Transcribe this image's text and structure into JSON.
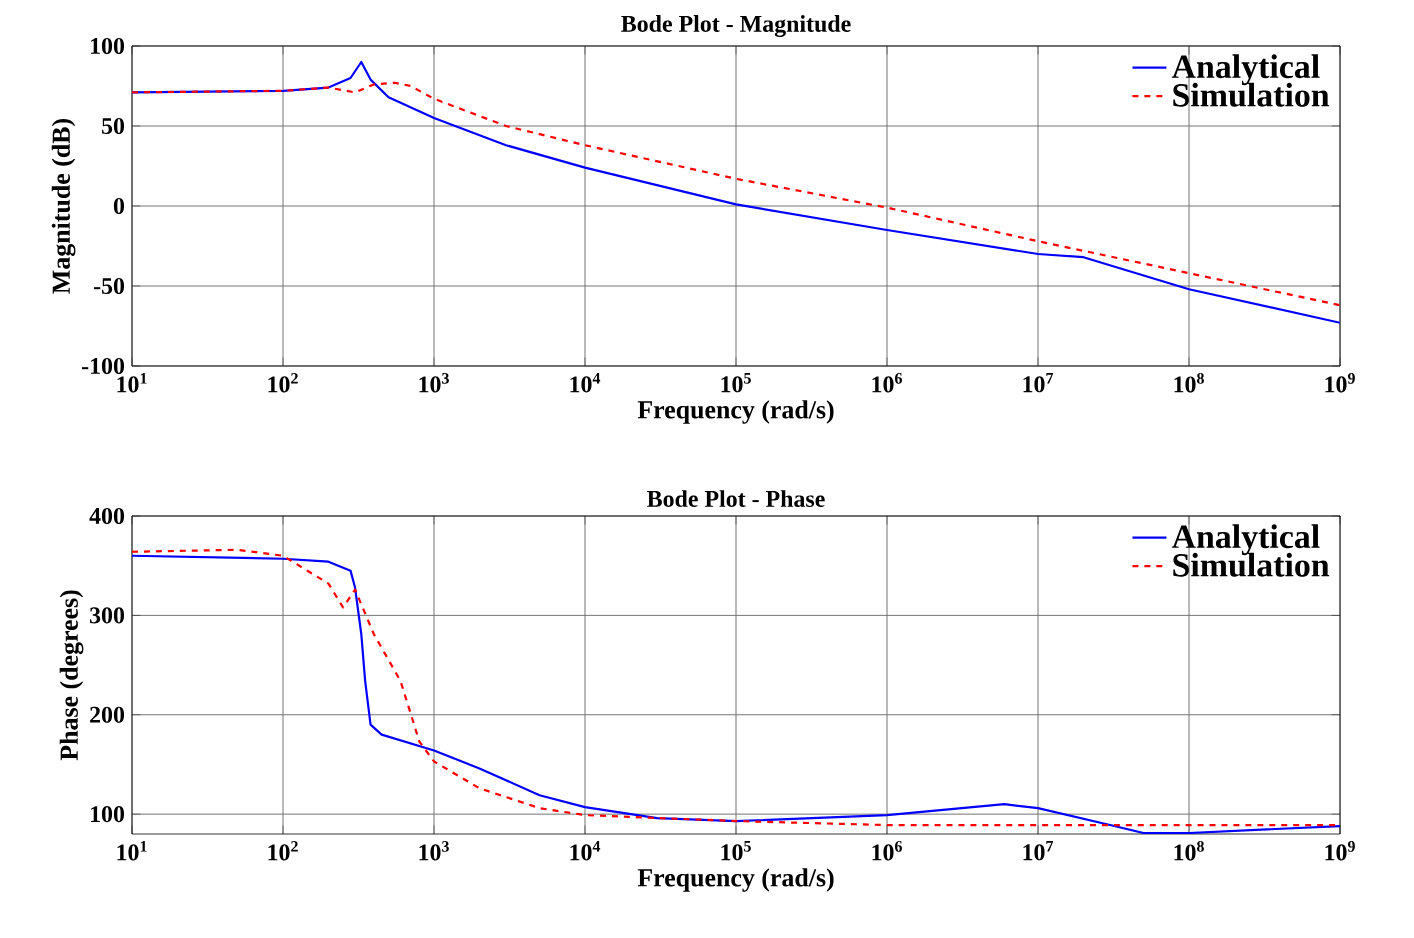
{
  "chart_data": [
    {
      "type": "line",
      "title": "Bode Plot - Magnitude",
      "xlabel": "Frequency (rad/s)",
      "ylabel": "Magnitude (dB)",
      "log": "x",
      "grid": true,
      "legend": "top right",
      "xlim": [
        10,
        1000000000
      ],
      "ylim": [
        -100,
        100
      ],
      "xticks": [
        {
          "value": 10,
          "label": "10$^{1}$"
        },
        {
          "value": 100,
          "label": "10$^{2}$"
        },
        {
          "value": 1000,
          "label": "10$^{3}$"
        },
        {
          "value": 10000,
          "label": "10$^{4}$"
        },
        {
          "value": 100000,
          "label": "10$^{5}$"
        },
        {
          "value": 1000000,
          "label": "10$^{6}$"
        },
        {
          "value": 10000000,
          "label": "10$^{7}$"
        },
        {
          "value": 100000000,
          "label": "10$^{8}$"
        },
        {
          "value": 1000000000,
          "label": "10$^{9}$"
        }
      ],
      "yticks": [
        -100,
        -50,
        0,
        50,
        100
      ],
      "series": [
        {
          "name": "Analytical",
          "color": "#0000ff",
          "line_style": "solid",
          "x": [
            10,
            100,
            200,
            280,
            330,
            380,
            500,
            1000,
            3000,
            10000,
            100000,
            1000000,
            10000000,
            20000000,
            100000000,
            1000000000
          ],
          "values": [
            71,
            72,
            74,
            80,
            90,
            79,
            68,
            55,
            38,
            24,
            1,
            -15,
            -30,
            -32,
            -52,
            -73
          ]
        },
        {
          "name": "Simulation",
          "color": "#ff0000",
          "line_style": "dashed",
          "x": [
            10,
            100,
            200,
            300,
            400,
            550,
            700,
            1000,
            3000,
            10000,
            100000,
            1000000,
            10000000,
            100000000,
            1000000000
          ],
          "values": [
            71,
            72,
            74,
            71,
            76,
            77,
            75,
            67,
            50,
            38,
            17,
            -1,
            -22,
            -42,
            -62
          ]
        }
      ]
    },
    {
      "type": "line",
      "title": "Bode Plot - Phase",
      "xlabel": "Frequency (rad/s)",
      "ylabel": "Phase (degrees)",
      "log": "x",
      "grid": true,
      "legend": "top right",
      "xlim": [
        10,
        1000000000
      ],
      "ylim": [
        80,
        400
      ],
      "xticks": [
        {
          "value": 10,
          "label": "10$^{1}$"
        },
        {
          "value": 100,
          "label": "10$^{2}$"
        },
        {
          "value": 1000,
          "label": "10$^{3}$"
        },
        {
          "value": 10000,
          "label": "10$^{4}$"
        },
        {
          "value": 100000,
          "label": "10$^{5}$"
        },
        {
          "value": 1000000,
          "label": "10$^{6}$"
        },
        {
          "value": 10000000,
          "label": "10$^{7}$"
        },
        {
          "value": 100000000,
          "label": "10$^{8}$"
        },
        {
          "value": 1000000000,
          "label": "10$^{9}$"
        }
      ],
      "yticks": [
        100,
        200,
        300,
        400
      ],
      "series": [
        {
          "name": "Analytical",
          "color": "#0000ff",
          "line_style": "solid",
          "x": [
            10,
            100,
            200,
            280,
            300,
            330,
            350,
            380,
            450,
            1000,
            2000,
            5000,
            10000,
            30000,
            100000,
            1000000,
            6000000,
            10000000,
            30000000,
            50000000,
            100000000,
            1000000000
          ],
          "values": [
            360,
            357,
            354,
            345,
            328,
            281,
            234,
            190,
            180,
            164,
            146,
            119,
            107,
            96,
            93,
            99,
            110,
            106,
            89,
            81,
            81,
            88
          ]
        },
        {
          "name": "Simulation",
          "color": "#ff0000",
          "line_style": "dashed",
          "x": [
            10,
            50,
            100,
            200,
            250,
            300,
            400,
            600,
            800,
            1000,
            2000,
            5000,
            10000,
            100000,
            1000000,
            1000000000
          ],
          "values": [
            364,
            366,
            360,
            332,
            308,
            326,
            281,
            234,
            173,
            153,
            126,
            106,
            99,
            93,
            89,
            89
          ]
        }
      ]
    }
  ]
}
